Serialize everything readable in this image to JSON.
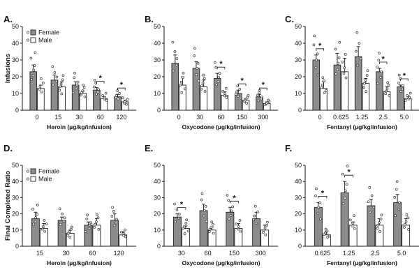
{
  "chart_data": [
    {
      "type": "bar",
      "panel": "A.",
      "ylabel": "Infusions",
      "xlabel": "Heroin (µg/kg/infusion)",
      "ylim": [
        0,
        50
      ],
      "yticks": [
        0,
        10,
        20,
        30,
        40,
        50
      ],
      "categories": [
        "0",
        "15",
        "30",
        "60",
        "120"
      ],
      "series": [
        {
          "name": "Female",
          "values": [
            23,
            18,
            15,
            12,
            8
          ],
          "errors": [
            4,
            3,
            2,
            1.5,
            1.5
          ]
        },
        {
          "name": "Male",
          "values": [
            13,
            14,
            10,
            7,
            5
          ],
          "errors": [
            2,
            3,
            1.5,
            1,
            1
          ]
        }
      ],
      "significance": [
        {
          "category": "60",
          "label": "*"
        },
        {
          "category": "120",
          "label": "*"
        }
      ],
      "legend": {
        "entries": [
          "Female",
          "Male"
        ],
        "position": "top-left"
      }
    },
    {
      "type": "bar",
      "panel": "B.",
      "ylabel": "",
      "xlabel": "Oxycodone (µg/kg/infusion)",
      "ylim": [
        0,
        50
      ],
      "yticks": [
        0,
        10,
        20,
        30,
        40,
        50
      ],
      "categories": [
        "0",
        "30",
        "60",
        "150",
        "300"
      ],
      "series": [
        {
          "name": "Female",
          "values": [
            28,
            25,
            19,
            10,
            8
          ],
          "errors": [
            5,
            4,
            3,
            2,
            1.5
          ]
        },
        {
          "name": "Male",
          "values": [
            15,
            14,
            9,
            6,
            4
          ],
          "errors": [
            5,
            4,
            2,
            1,
            1
          ]
        }
      ],
      "significance": [
        {
          "category": "60",
          "label": "*"
        },
        {
          "category": "150",
          "label": "*"
        },
        {
          "category": "300",
          "label": "*"
        }
      ]
    },
    {
      "type": "bar",
      "panel": "C.",
      "ylabel": "",
      "xlabel": "Fentanyl (µg/kg/infusion)",
      "ylim": [
        0,
        50
      ],
      "yticks": [
        0,
        10,
        20,
        30,
        40,
        50
      ],
      "categories": [
        "0",
        "0.625",
        "1.25",
        "2.5",
        "5.0"
      ],
      "series": [
        {
          "name": "Female",
          "values": [
            30,
            27,
            32,
            23,
            14
          ],
          "errors": [
            3,
            7,
            6,
            2,
            1
          ]
        },
        {
          "name": "Male",
          "values": [
            13,
            23,
            16,
            11,
            7
          ],
          "errors": [
            4,
            8,
            3,
            3,
            1.5
          ]
        }
      ],
      "significance": [
        {
          "category": "0",
          "label": "*"
        },
        {
          "category": "2.5",
          "label": "*"
        },
        {
          "category": "5.0",
          "label": "*"
        }
      ]
    },
    {
      "type": "bar",
      "panel": "D.",
      "ylabel": "Final Completed Ratio",
      "xlabel": "Heroin (µg/kg/infusion)",
      "ylim": [
        0,
        50
      ],
      "yticks": [
        0,
        10,
        20,
        30,
        40,
        50
      ],
      "categories": [
        "15",
        "30",
        "60",
        "120"
      ],
      "series": [
        {
          "name": "Female",
          "values": [
            17,
            16,
            13,
            16
          ],
          "errors": [
            4,
            2,
            2,
            4
          ]
        },
        {
          "name": "Male",
          "values": [
            11,
            8,
            13,
            7
          ],
          "errors": [
            3,
            2,
            4,
            2
          ]
        }
      ],
      "significance": [],
      "legend": {
        "entries": [
          "Female",
          "Male"
        ],
        "position": "top-left"
      }
    },
    {
      "type": "bar",
      "panel": "E.",
      "ylabel": "",
      "xlabel": "Oxycodone (µg/kg/infusion)",
      "ylim": [
        0,
        50
      ],
      "yticks": [
        0,
        10,
        20,
        30,
        40,
        50
      ],
      "categories": [
        "30",
        "60",
        "150",
        "300"
      ],
      "series": [
        {
          "name": "Female",
          "values": [
            18,
            22,
            21,
            17
          ],
          "errors": [
            2,
            4,
            3,
            4
          ]
        },
        {
          "name": "Male",
          "values": [
            11,
            10,
            11,
            10
          ],
          "errors": [
            1.5,
            2,
            3,
            3
          ]
        }
      ],
      "significance": [
        {
          "category": "30",
          "label": "*"
        },
        {
          "category": "150",
          "label": "*"
        }
      ]
    },
    {
      "type": "bar",
      "panel": "F.",
      "ylabel": "",
      "xlabel": "Fentanyl (µg/kg/infusion)",
      "ylim": [
        0,
        50
      ],
      "yticks": [
        0,
        10,
        20,
        30,
        40,
        50
      ],
      "categories": [
        "0.625",
        "1.25",
        "2.5",
        "5.0"
      ],
      "series": [
        {
          "name": "Female",
          "values": [
            24,
            33,
            25,
            27
          ],
          "errors": [
            3,
            7,
            4,
            5
          ]
        },
        {
          "name": "Male",
          "values": [
            7,
            13,
            13,
            13
          ],
          "errors": [
            2,
            2,
            4,
            4
          ]
        }
      ],
      "significance": [
        {
          "category": "0.625",
          "label": "*"
        },
        {
          "category": "1.25",
          "label": "*"
        }
      ]
    }
  ],
  "colors": {
    "female_fill": "#8c8c8c",
    "male_fill": "#ffffff",
    "stroke": "#222222"
  }
}
